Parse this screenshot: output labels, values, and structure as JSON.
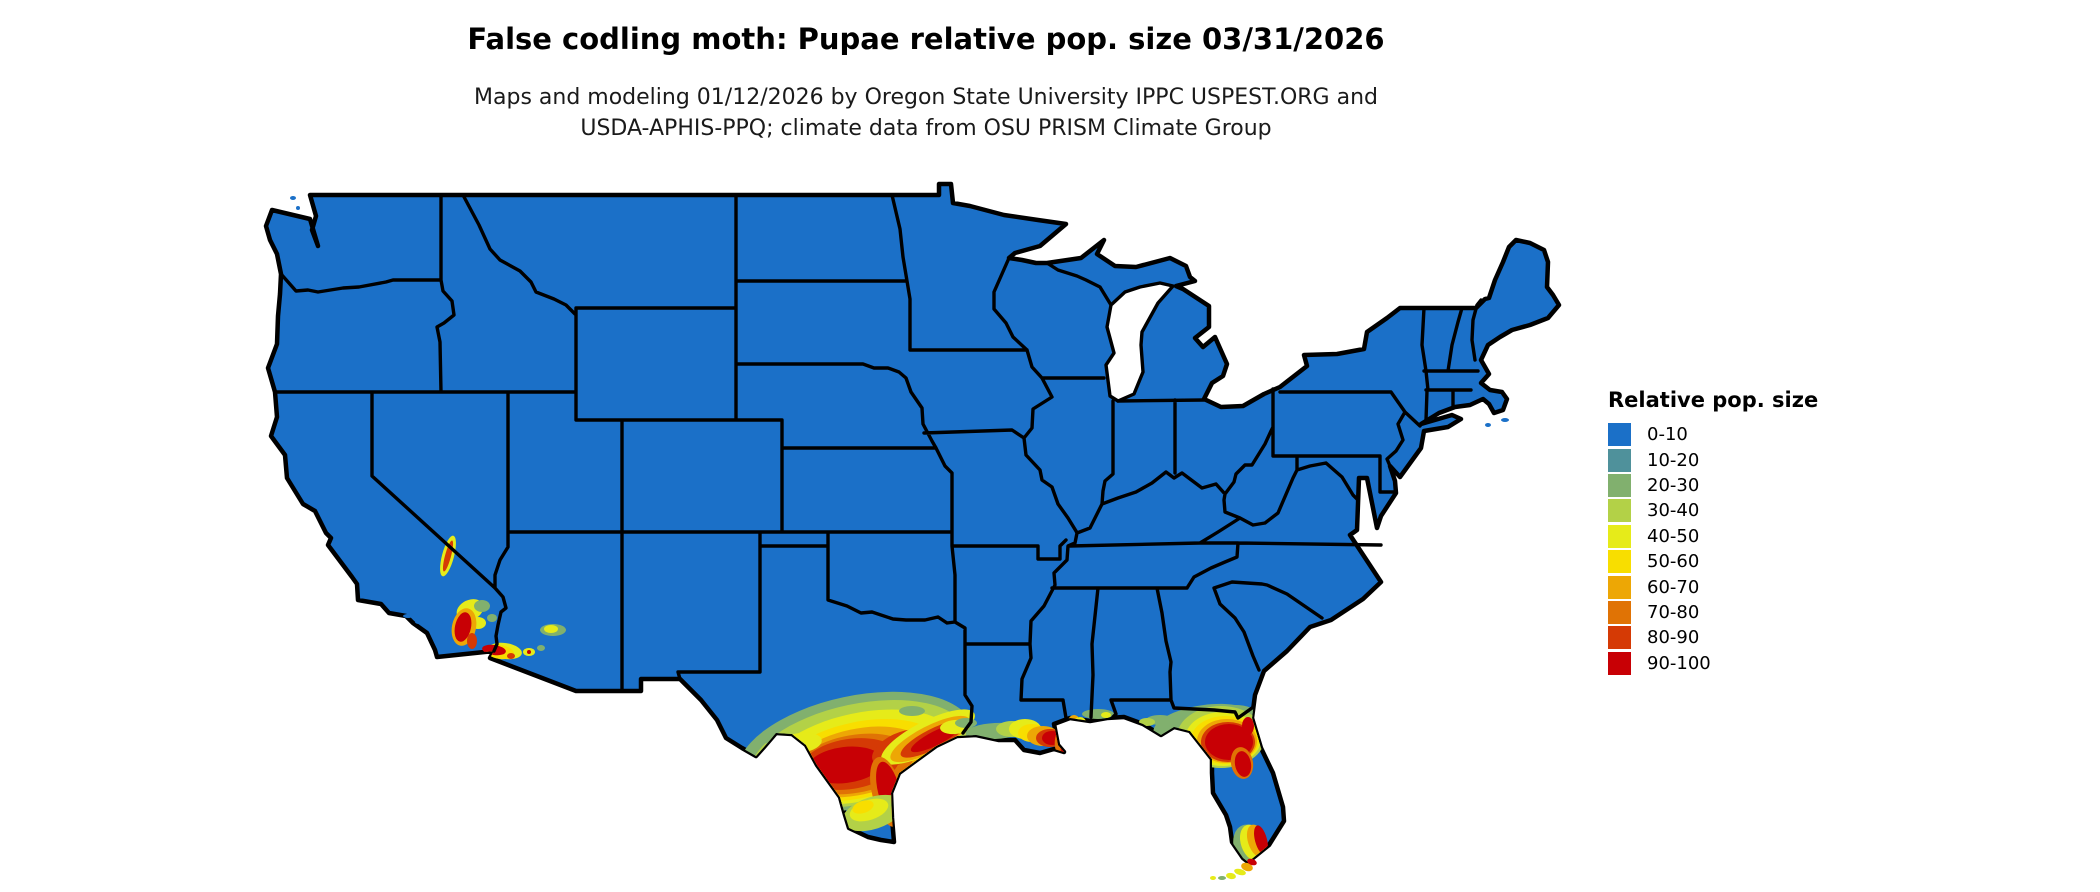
{
  "header": {
    "title": "False codling moth: Pupae relative pop. size 03/31/2026",
    "subtitle_line1": "Maps and modeling 01/12/2026 by Oregon State University IPPC USPEST.ORG and",
    "subtitle_line2": "USDA-APHIS-PPQ; climate data from OSU PRISM Climate Group"
  },
  "legend": {
    "title": "Relative pop. size",
    "items": [
      {
        "label": "0-10",
        "color": "#1b70c8"
      },
      {
        "label": "10-20",
        "color": "#4f919b"
      },
      {
        "label": "20-30",
        "color": "#81b06e"
      },
      {
        "label": "30-40",
        "color": "#b3d147"
      },
      {
        "label": "40-50",
        "color": "#e6eb19"
      },
      {
        "label": "50-60",
        "color": "#f8de00"
      },
      {
        "label": "60-70",
        "color": "#eda705"
      },
      {
        "label": "70-80",
        "color": "#e07305"
      },
      {
        "label": "80-90",
        "color": "#d53a05"
      },
      {
        "label": "90-100",
        "color": "#c80005"
      }
    ]
  },
  "map": {
    "land_border_color": "#000000",
    "water_color": "#ffffff",
    "base_range_label": "0-10"
  }
}
